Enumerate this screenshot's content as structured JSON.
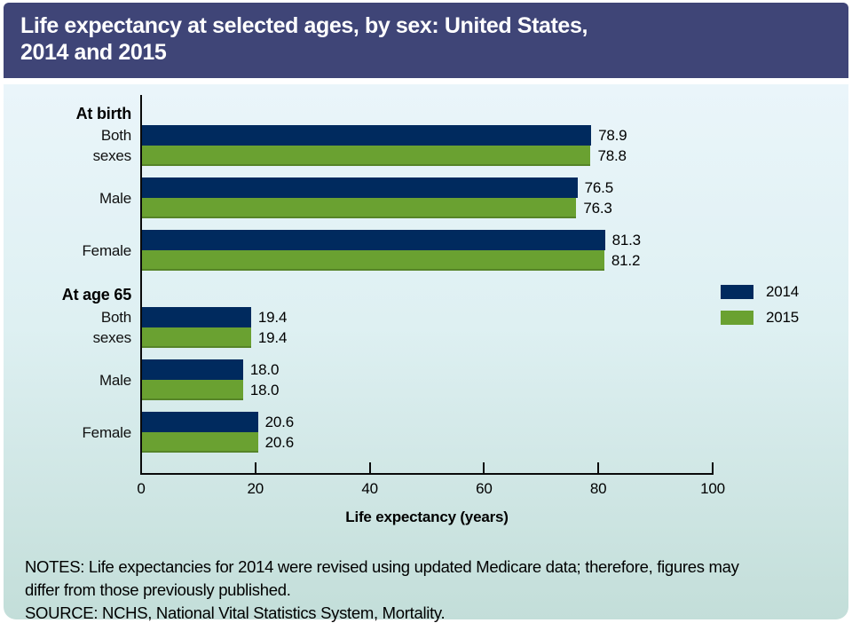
{
  "header": {
    "title_line1": "Life expectancy at selected ages, by sex: United States,",
    "title_line2": "2014 and 2015"
  },
  "colors": {
    "header_bg": "#3f4577",
    "bar_2014": "#002a5e",
    "bar_2015": "#6aa131",
    "panel_top": "#eaf5fa",
    "panel_bottom": "#c3ded9",
    "axis": "#0a0a0a"
  },
  "chart_data": {
    "type": "bar",
    "orientation": "horizontal",
    "title": "Life expectancy at selected ages, by sex: United States, 2014 and 2015",
    "xlabel": "Life expectancy (years)",
    "xlim": [
      0,
      100
    ],
    "xticks": [
      0,
      20,
      40,
      60,
      80,
      100
    ],
    "grid": false,
    "legend_position": "right",
    "legend": [
      {
        "name": "2014",
        "color": "#002a5e"
      },
      {
        "name": "2015",
        "color": "#6aa131"
      }
    ],
    "categories": [
      "At birth - Both sexes",
      "At birth - Male",
      "At birth - Female",
      "At age 65 - Both sexes",
      "At age 65 - Male",
      "At age 65 - Female"
    ],
    "series": [
      {
        "name": "2014",
        "values": [
          78.9,
          76.5,
          81.3,
          19.4,
          18.0,
          20.6
        ]
      },
      {
        "name": "2015",
        "values": [
          78.8,
          76.3,
          81.2,
          19.4,
          18.0,
          20.6
        ]
      }
    ],
    "sections": [
      {
        "header": "At birth",
        "rows": [
          {
            "label": "Both sexes",
            "label_lines": [
              "Both",
              "sexes"
            ],
            "v2014": 78.9,
            "v2015": 78.8
          },
          {
            "label": "Male",
            "label_lines": [
              "Male"
            ],
            "v2014": 76.5,
            "v2015": 76.3
          },
          {
            "label": "Female",
            "label_lines": [
              "Female"
            ],
            "v2014": 81.3,
            "v2015": 81.2
          }
        ]
      },
      {
        "header": "At age 65",
        "rows": [
          {
            "label": "Both sexes",
            "label_lines": [
              "Both",
              "sexes"
            ],
            "v2014": 19.4,
            "v2015": 19.4
          },
          {
            "label": "Male",
            "label_lines": [
              "Male"
            ],
            "v2014": 18.0,
            "v2015": 18.0
          },
          {
            "label": "Female",
            "label_lines": [
              "Female"
            ],
            "v2014": 20.6,
            "v2015": 20.6
          }
        ]
      }
    ]
  },
  "notes": {
    "line1": "NOTES: Life expectancies for 2014 were revised using updated Medicare data; therefore, figures may",
    "line2": "differ from those previously published.",
    "source": "SOURCE: NCHS, National Vital Statistics System, Mortality."
  }
}
